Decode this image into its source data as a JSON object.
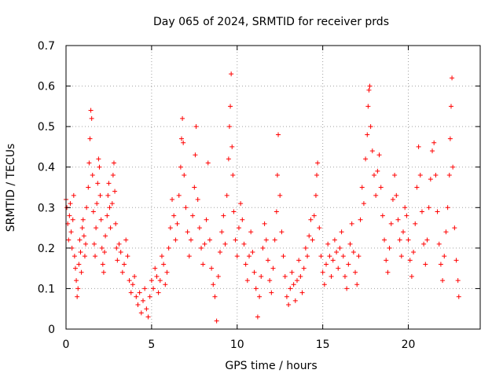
{
  "chart_data": {
    "type": "scatter",
    "title": "Day 065 of 2024, SRMTID for receiver prds",
    "xlabel": "GPS time / hours",
    "ylabel": "SRMTID / TECUs",
    "xlim": [
      0,
      24.2
    ],
    "ylim": [
      0,
      0.7
    ],
    "xticks": [
      0,
      5,
      10,
      15,
      20
    ],
    "yticks": [
      0,
      0.1,
      0.2,
      0.3,
      0.4,
      0.5,
      0.6,
      0.7
    ],
    "xtick_labels": [
      "0",
      "5",
      "10",
      "15",
      "20"
    ],
    "ytick_labels": [
      "0",
      "0.1",
      "0.2",
      "0.3",
      "0.4",
      "0.5",
      "0.6",
      "0.7"
    ],
    "grid": true,
    "marker": "+",
    "color": "#ff0000",
    "series": [
      {
        "name": "SRMTID",
        "points": [
          [
            0.0,
            0.32
          ],
          [
            0.05,
            0.3
          ],
          [
            0.1,
            0.26
          ],
          [
            0.15,
            0.22
          ],
          [
            0.2,
            0.28
          ],
          [
            0.25,
            0.31
          ],
          [
            0.3,
            0.24
          ],
          [
            0.35,
            0.2
          ],
          [
            0.4,
            0.27
          ],
          [
            0.45,
            0.33
          ],
          [
            0.5,
            0.18
          ],
          [
            0.55,
            0.15
          ],
          [
            0.6,
            0.12
          ],
          [
            0.65,
            0.08
          ],
          [
            0.7,
            0.1
          ],
          [
            0.75,
            0.16
          ],
          [
            0.8,
            0.22
          ],
          [
            0.85,
            0.19
          ],
          [
            0.9,
            0.14
          ],
          [
            0.95,
            0.25
          ],
          [
            1.0,
            0.27
          ],
          [
            1.05,
            0.23
          ],
          [
            1.1,
            0.18
          ],
          [
            1.15,
            0.21
          ],
          [
            1.2,
            0.3
          ],
          [
            1.3,
            0.35
          ],
          [
            1.35,
            0.41
          ],
          [
            1.4,
            0.47
          ],
          [
            1.45,
            0.54
          ],
          [
            1.5,
            0.52
          ],
          [
            1.55,
            0.38
          ],
          [
            1.6,
            0.29
          ],
          [
            1.65,
            0.21
          ],
          [
            1.7,
            0.18
          ],
          [
            1.75,
            0.25
          ],
          [
            1.8,
            0.31
          ],
          [
            1.85,
            0.36
          ],
          [
            1.9,
            0.42
          ],
          [
            1.95,
            0.4
          ],
          [
            2.0,
            0.33
          ],
          [
            2.05,
            0.27
          ],
          [
            2.1,
            0.2
          ],
          [
            2.15,
            0.16
          ],
          [
            2.2,
            0.14
          ],
          [
            2.25,
            0.19
          ],
          [
            2.3,
            0.23
          ],
          [
            2.4,
            0.28
          ],
          [
            2.45,
            0.33
          ],
          [
            2.5,
            0.36
          ],
          [
            2.55,
            0.3
          ],
          [
            2.6,
            0.25
          ],
          [
            2.7,
            0.31
          ],
          [
            2.75,
            0.38
          ],
          [
            2.8,
            0.41
          ],
          [
            2.85,
            0.34
          ],
          [
            2.9,
            0.26
          ],
          [
            2.95,
            0.2
          ],
          [
            3.0,
            0.17
          ],
          [
            3.1,
            0.21
          ],
          [
            3.2,
            0.19
          ],
          [
            3.3,
            0.14
          ],
          [
            3.4,
            0.16
          ],
          [
            3.5,
            0.22
          ],
          [
            3.6,
            0.18
          ],
          [
            3.7,
            0.12
          ],
          [
            3.8,
            0.09
          ],
          [
            3.9,
            0.11
          ],
          [
            4.0,
            0.13
          ],
          [
            4.1,
            0.08
          ],
          [
            4.2,
            0.06
          ],
          [
            4.3,
            0.09
          ],
          [
            4.4,
            0.04
          ],
          [
            4.5,
            0.07
          ],
          [
            4.6,
            0.1
          ],
          [
            4.7,
            0.05
          ],
          [
            4.8,
            0.03
          ],
          [
            4.9,
            0.08
          ],
          [
            5.0,
            0.12
          ],
          [
            5.1,
            0.1
          ],
          [
            5.2,
            0.15
          ],
          [
            5.3,
            0.13
          ],
          [
            5.4,
            0.09
          ],
          [
            5.5,
            0.12
          ],
          [
            5.6,
            0.18
          ],
          [
            5.7,
            0.16
          ],
          [
            5.8,
            0.11
          ],
          [
            5.9,
            0.14
          ],
          [
            6.0,
            0.2
          ],
          [
            6.1,
            0.25
          ],
          [
            6.2,
            0.32
          ],
          [
            6.3,
            0.28
          ],
          [
            6.4,
            0.22
          ],
          [
            6.5,
            0.26
          ],
          [
            6.6,
            0.33
          ],
          [
            6.7,
            0.4
          ],
          [
            6.75,
            0.47
          ],
          [
            6.8,
            0.52
          ],
          [
            6.85,
            0.46
          ],
          [
            6.9,
            0.38
          ],
          [
            7.0,
            0.3
          ],
          [
            7.1,
            0.24
          ],
          [
            7.2,
            0.18
          ],
          [
            7.3,
            0.22
          ],
          [
            7.4,
            0.28
          ],
          [
            7.5,
            0.35
          ],
          [
            7.55,
            0.43
          ],
          [
            7.6,
            0.5
          ],
          [
            7.7,
            0.32
          ],
          [
            7.8,
            0.25
          ],
          [
            7.9,
            0.2
          ],
          [
            8.0,
            0.16
          ],
          [
            8.1,
            0.21
          ],
          [
            8.2,
            0.27
          ],
          [
            8.3,
            0.41
          ],
          [
            8.4,
            0.22
          ],
          [
            8.5,
            0.15
          ],
          [
            8.6,
            0.11
          ],
          [
            8.7,
            0.08
          ],
          [
            8.8,
            0.02
          ],
          [
            8.9,
            0.13
          ],
          [
            9.0,
            0.19
          ],
          [
            9.1,
            0.24
          ],
          [
            9.2,
            0.28
          ],
          [
            9.3,
            0.21
          ],
          [
            9.4,
            0.33
          ],
          [
            9.5,
            0.42
          ],
          [
            9.55,
            0.5
          ],
          [
            9.6,
            0.55
          ],
          [
            9.65,
            0.63
          ],
          [
            9.7,
            0.45
          ],
          [
            9.75,
            0.38
          ],
          [
            9.8,
            0.29
          ],
          [
            9.9,
            0.22
          ],
          [
            10.0,
            0.18
          ],
          [
            10.1,
            0.25
          ],
          [
            10.2,
            0.31
          ],
          [
            10.3,
            0.27
          ],
          [
            10.4,
            0.21
          ],
          [
            10.5,
            0.16
          ],
          [
            10.6,
            0.12
          ],
          [
            10.7,
            0.18
          ],
          [
            10.8,
            0.24
          ],
          [
            10.9,
            0.19
          ],
          [
            11.0,
            0.14
          ],
          [
            11.1,
            0.1
          ],
          [
            11.2,
            0.03
          ],
          [
            11.3,
            0.08
          ],
          [
            11.4,
            0.13
          ],
          [
            11.5,
            0.2
          ],
          [
            11.6,
            0.26
          ],
          [
            11.7,
            0.22
          ],
          [
            11.8,
            0.17
          ],
          [
            11.9,
            0.12
          ],
          [
            12.0,
            0.09
          ],
          [
            12.1,
            0.15
          ],
          [
            12.2,
            0.22
          ],
          [
            12.3,
            0.29
          ],
          [
            12.35,
            0.38
          ],
          [
            12.4,
            0.48
          ],
          [
            12.5,
            0.33
          ],
          [
            12.6,
            0.24
          ],
          [
            12.7,
            0.18
          ],
          [
            12.8,
            0.13
          ],
          [
            12.9,
            0.08
          ],
          [
            13.0,
            0.06
          ],
          [
            13.1,
            0.1
          ],
          [
            13.2,
            0.14
          ],
          [
            13.3,
            0.11
          ],
          [
            13.4,
            0.07
          ],
          [
            13.5,
            0.12
          ],
          [
            13.6,
            0.17
          ],
          [
            13.7,
            0.13
          ],
          [
            13.8,
            0.09
          ],
          [
            13.9,
            0.15
          ],
          [
            14.0,
            0.2
          ],
          [
            14.1,
            0.18
          ],
          [
            14.2,
            0.23
          ],
          [
            14.3,
            0.27
          ],
          [
            14.4,
            0.22
          ],
          [
            14.5,
            0.28
          ],
          [
            14.6,
            0.33
          ],
          [
            14.65,
            0.38
          ],
          [
            14.7,
            0.41
          ],
          [
            14.8,
            0.25
          ],
          [
            14.9,
            0.18
          ],
          [
            15.0,
            0.14
          ],
          [
            15.1,
            0.11
          ],
          [
            15.2,
            0.16
          ],
          [
            15.3,
            0.21
          ],
          [
            15.4,
            0.18
          ],
          [
            15.5,
            0.13
          ],
          [
            15.6,
            0.17
          ],
          [
            15.7,
            0.22
          ],
          [
            15.8,
            0.19
          ],
          [
            15.9,
            0.15
          ],
          [
            16.0,
            0.2
          ],
          [
            16.1,
            0.24
          ],
          [
            16.2,
            0.18
          ],
          [
            16.3,
            0.13
          ],
          [
            16.4,
            0.1
          ],
          [
            16.5,
            0.16
          ],
          [
            16.6,
            0.21
          ],
          [
            16.7,
            0.26
          ],
          [
            16.8,
            0.19
          ],
          [
            16.9,
            0.14
          ],
          [
            17.0,
            0.11
          ],
          [
            17.1,
            0.18
          ],
          [
            17.2,
            0.27
          ],
          [
            17.3,
            0.35
          ],
          [
            17.4,
            0.31
          ],
          [
            17.5,
            0.42
          ],
          [
            17.6,
            0.48
          ],
          [
            17.65,
            0.55
          ],
          [
            17.7,
            0.59
          ],
          [
            17.75,
            0.6
          ],
          [
            17.8,
            0.5
          ],
          [
            17.9,
            0.44
          ],
          [
            18.0,
            0.38
          ],
          [
            18.1,
            0.33
          ],
          [
            18.2,
            0.39
          ],
          [
            18.3,
            0.43
          ],
          [
            18.4,
            0.35
          ],
          [
            18.5,
            0.28
          ],
          [
            18.6,
            0.22
          ],
          [
            18.7,
            0.17
          ],
          [
            18.8,
            0.14
          ],
          [
            18.9,
            0.2
          ],
          [
            19.0,
            0.26
          ],
          [
            19.1,
            0.32
          ],
          [
            19.2,
            0.38
          ],
          [
            19.3,
            0.33
          ],
          [
            19.4,
            0.27
          ],
          [
            19.5,
            0.22
          ],
          [
            19.6,
            0.18
          ],
          [
            19.7,
            0.24
          ],
          [
            19.8,
            0.3
          ],
          [
            19.9,
            0.28
          ],
          [
            20.0,
            0.22
          ],
          [
            20.1,
            0.17
          ],
          [
            20.2,
            0.13
          ],
          [
            20.3,
            0.19
          ],
          [
            20.4,
            0.26
          ],
          [
            20.5,
            0.35
          ],
          [
            20.6,
            0.45
          ],
          [
            20.7,
            0.38
          ],
          [
            20.8,
            0.29
          ],
          [
            20.9,
            0.21
          ],
          [
            21.0,
            0.16
          ],
          [
            21.1,
            0.22
          ],
          [
            21.2,
            0.3
          ],
          [
            21.3,
            0.37
          ],
          [
            21.4,
            0.44
          ],
          [
            21.5,
            0.46
          ],
          [
            21.6,
            0.38
          ],
          [
            21.7,
            0.29
          ],
          [
            21.8,
            0.21
          ],
          [
            21.9,
            0.16
          ],
          [
            22.0,
            0.12
          ],
          [
            22.1,
            0.18
          ],
          [
            22.2,
            0.24
          ],
          [
            22.3,
            0.3
          ],
          [
            22.4,
            0.38
          ],
          [
            22.45,
            0.47
          ],
          [
            22.5,
            0.55
          ],
          [
            22.55,
            0.62
          ],
          [
            22.6,
            0.4
          ],
          [
            22.7,
            0.25
          ],
          [
            22.8,
            0.17
          ],
          [
            22.9,
            0.12
          ],
          [
            22.95,
            0.08
          ]
        ]
      }
    ]
  }
}
